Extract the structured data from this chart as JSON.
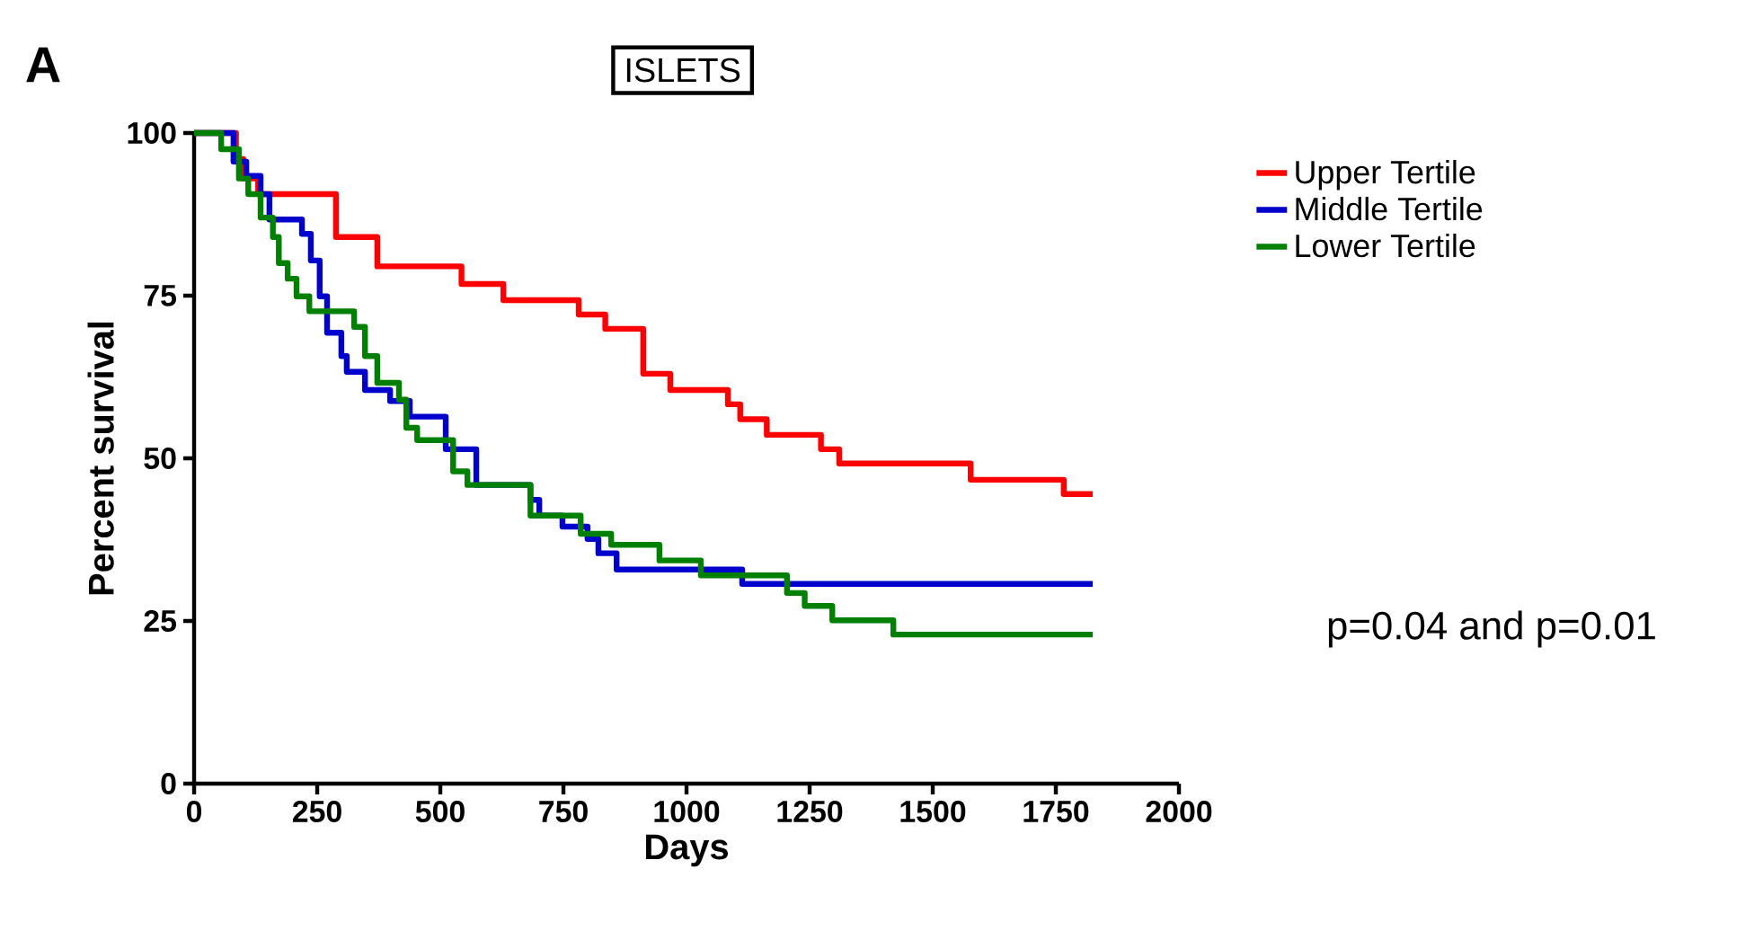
{
  "chart_data": {
    "type": "step",
    "title": "ISLETS",
    "xlabel": "Days",
    "ylabel": "Percent survival",
    "xlim": [
      0,
      2000
    ],
    "ylim": [
      0,
      100
    ],
    "xticks": [
      0,
      250,
      500,
      750,
      1000,
      1250,
      1500,
      1750,
      2000
    ],
    "yticks": [
      0,
      25,
      50,
      75,
      100
    ],
    "grid": false,
    "legend": "right",
    "line_style": "solid",
    "marker": "none",
    "annotations": [
      "A",
      "p=0.04 and p=0.01"
    ],
    "series": [
      {
        "name": "Upper Tertile",
        "color": "#ff0000",
        "x": [
          0,
          85,
          100,
          130,
          161,
          288,
          372,
          543,
          628,
          781,
          835,
          912,
          967,
          1084,
          1109,
          1163,
          1273,
          1310,
          1577,
          1766,
          1825
        ],
        "values": [
          100,
          96,
          93,
          90.6,
          90.6,
          84,
          79.5,
          76.8,
          74.3,
          72.1,
          69.9,
          63,
          60.5,
          58.3,
          56,
          53.6,
          51.4,
          49.2,
          46.7,
          44.5,
          44.5
        ]
      },
      {
        "name": "Middle Tertile",
        "color": "#0000cc",
        "x": [
          0,
          80,
          106,
          135,
          153,
          219,
          237,
          255,
          270,
          299,
          310,
          347,
          398,
          438,
          511,
          573,
          683,
          701,
          748,
          799,
          821,
          858,
          1113,
          1825
        ],
        "values": [
          100,
          95.6,
          93.4,
          90.6,
          86.7,
          84.5,
          80.4,
          74.9,
          69.3,
          65.7,
          63.3,
          60.5,
          58.8,
          56.4,
          51.4,
          45.9,
          43.6,
          41.2,
          39.5,
          37.6,
          35.4,
          32.9,
          30.7,
          30.7
        ]
      },
      {
        "name": "Lower Tertile",
        "color": "#008000",
        "x": [
          0,
          55,
          91,
          110,
          135,
          160,
          172,
          190,
          208,
          234,
          325,
          347,
          372,
          416,
          431,
          453,
          526,
          555,
          683,
          785,
          847,
          945,
          1029,
          1204,
          1240,
          1296,
          1420,
          1825
        ],
        "values": [
          100,
          97.5,
          93,
          90.6,
          87,
          84,
          80,
          77.6,
          74.9,
          72.6,
          70.2,
          65.7,
          61.6,
          59,
          54.7,
          52.8,
          48,
          45.9,
          41.2,
          38.4,
          36.7,
          34.3,
          32,
          29.3,
          27.3,
          25.1,
          22.9,
          22.9
        ]
      }
    ]
  }
}
